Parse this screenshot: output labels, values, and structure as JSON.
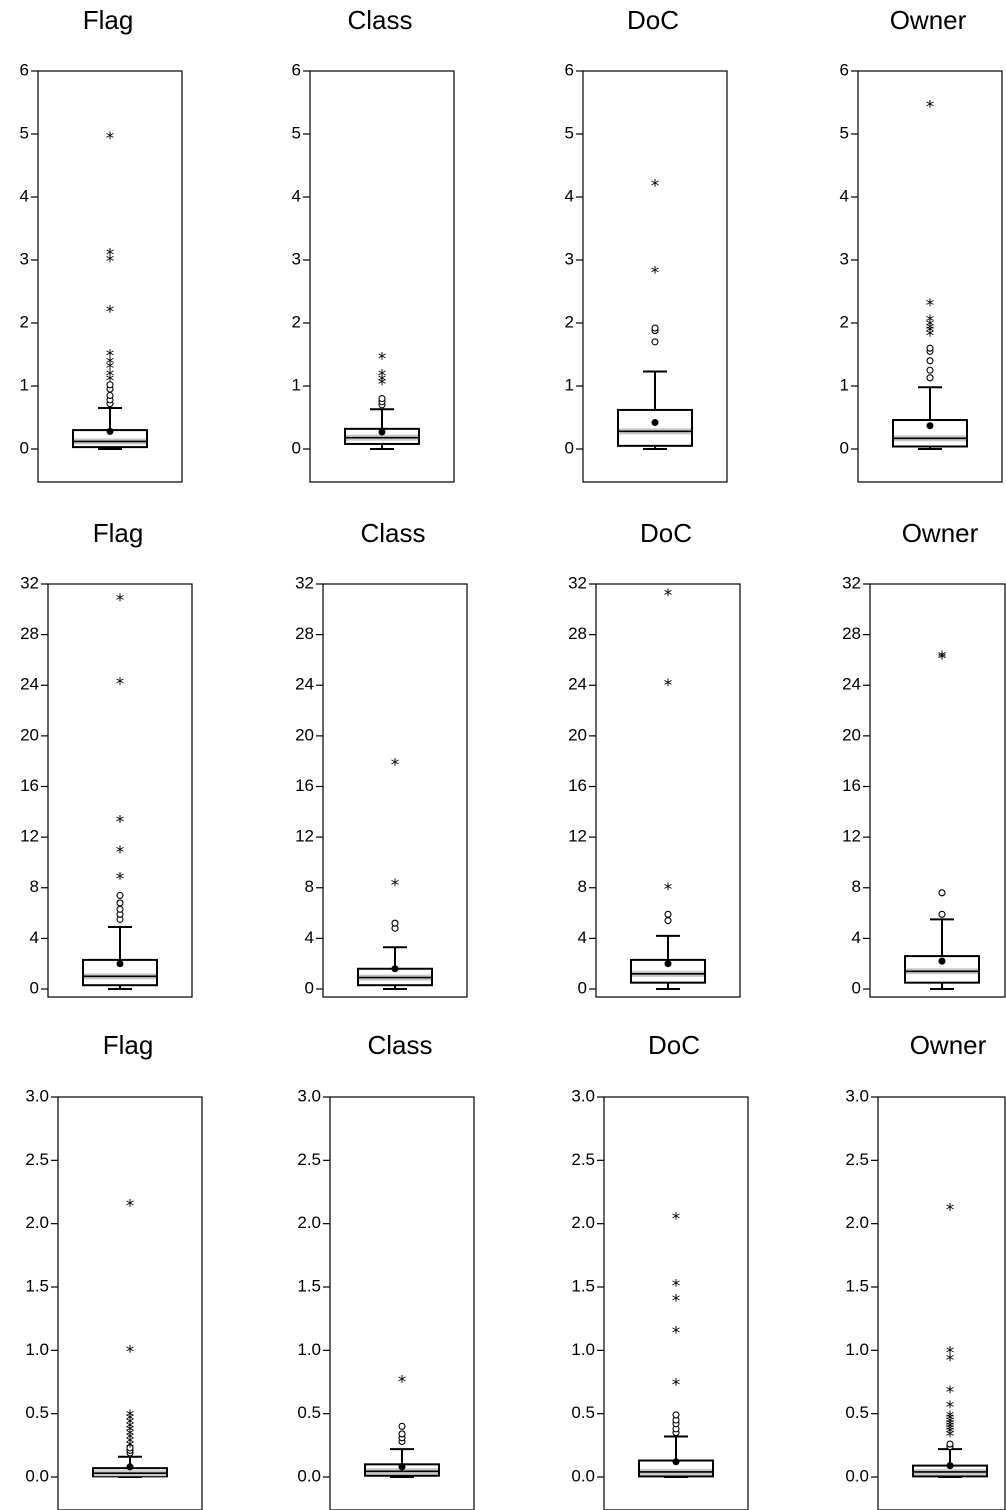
{
  "chart_data": [
    {
      "type": "box",
      "title": "Flag",
      "yticks": [
        "0",
        "1",
        "2",
        "3",
        "4",
        "5",
        "6"
      ],
      "ylim": [
        -0.5,
        6
      ],
      "q1": 0.03,
      "median": 0.12,
      "q3": 0.3,
      "whisker_low": 0,
      "whisker_high": 0.65,
      "mean": 0.28,
      "outliers_mild": [
        0.72,
        0.78,
        0.85,
        0.95,
        1.02
      ],
      "outliers_extreme": [
        1.1,
        1.18,
        1.3,
        1.38,
        1.5,
        2.2,
        3.0,
        3.1,
        4.95
      ]
    },
    {
      "type": "box",
      "title": "Class",
      "yticks": [
        "0",
        "1",
        "2",
        "3",
        "4",
        "5",
        "6"
      ],
      "ylim": [
        -0.5,
        6
      ],
      "q1": 0.08,
      "median": 0.18,
      "q3": 0.32,
      "whisker_low": 0,
      "whisker_high": 0.63,
      "mean": 0.27,
      "outliers_mild": [
        0.7,
        0.75,
        0.8
      ],
      "outliers_extreme": [
        1.05,
        1.1,
        1.18,
        1.45
      ]
    },
    {
      "type": "box",
      "title": "DoC",
      "yticks": [
        "0",
        "1",
        "2",
        "3",
        "4",
        "5",
        "6"
      ],
      "ylim": [
        -0.5,
        6
      ],
      "q1": 0.05,
      "median": 0.28,
      "q3": 0.62,
      "whisker_low": 0,
      "whisker_high": 1.23,
      "mean": 0.42,
      "outliers_mild": [
        1.7,
        1.88,
        1.92
      ],
      "outliers_extreme": [
        2.82,
        4.2
      ]
    },
    {
      "type": "box",
      "title": "Owner",
      "yticks": [
        "0",
        "1",
        "2",
        "3",
        "4",
        "5",
        "6"
      ],
      "ylim": [
        -0.5,
        6
      ],
      "q1": 0.04,
      "median": 0.17,
      "q3": 0.46,
      "whisker_low": 0,
      "whisker_high": 0.98,
      "mean": 0.37,
      "outliers_mild": [
        1.13,
        1.25,
        1.4,
        1.55,
        1.6
      ],
      "outliers_extreme": [
        1.82,
        1.88,
        1.92,
        1.98,
        2.05,
        2.3,
        5.45
      ]
    },
    {
      "type": "box",
      "title": "Flag",
      "yticks": [
        "0",
        "4",
        "8",
        "12",
        "16",
        "20",
        "24",
        "28",
        "32"
      ],
      "ylim": [
        -0.5,
        32
      ],
      "q1": 0.3,
      "median": 1.0,
      "q3": 2.3,
      "whisker_low": 0,
      "whisker_high": 4.9,
      "mean": 2.0,
      "outliers_mild": [
        5.5,
        5.9,
        6.3,
        6.8,
        7.4
      ],
      "outliers_extreme": [
        8.8,
        10.9,
        13.3,
        24.2,
        30.8
      ]
    },
    {
      "type": "box",
      "title": "Class",
      "yticks": [
        "0",
        "4",
        "8",
        "12",
        "16",
        "20",
        "24",
        "28",
        "32"
      ],
      "ylim": [
        -0.5,
        32
      ],
      "q1": 0.3,
      "median": 0.9,
      "q3": 1.6,
      "whisker_low": 0,
      "whisker_high": 3.3,
      "mean": 1.6,
      "outliers_mild": [
        4.8,
        5.2
      ],
      "outliers_extreme": [
        8.3,
        17.8
      ]
    },
    {
      "type": "box",
      "title": "DoC",
      "yticks": [
        "0",
        "4",
        "8",
        "12",
        "16",
        "20",
        "24",
        "28",
        "32"
      ],
      "ylim": [
        -0.5,
        32
      ],
      "q1": 0.5,
      "median": 1.2,
      "q3": 2.3,
      "whisker_low": 0,
      "whisker_high": 4.2,
      "mean": 2.0,
      "outliers_mild": [
        5.4,
        5.9
      ],
      "outliers_extreme": [
        8.0,
        24.1,
        31.2
      ]
    },
    {
      "type": "box",
      "title": "Owner",
      "yticks": [
        "0",
        "4",
        "8",
        "12",
        "16",
        "20",
        "24",
        "28",
        "32"
      ],
      "ylim": [
        -0.5,
        32
      ],
      "q1": 0.5,
      "median": 1.4,
      "q3": 2.6,
      "whisker_low": 0,
      "whisker_high": 5.5,
      "mean": 2.2,
      "outliers_mild": [
        5.9,
        7.6
      ],
      "outliers_extreme": [
        26.2,
        26.3
      ]
    },
    {
      "type": "box",
      "title": "Flag",
      "yticks": [
        "0.0",
        "0.5",
        "1.0",
        "1.5",
        "2.0",
        "2.5",
        "3.0"
      ],
      "ylim": [
        -0.2,
        3.0
      ],
      "q1": 0.005,
      "median": 0.03,
      "q3": 0.07,
      "whisker_low": 0,
      "whisker_high": 0.16,
      "mean": 0.08,
      "outliers_mild": [
        0.19,
        0.21,
        0.23
      ],
      "outliers_extreme": [
        0.25,
        0.28,
        0.31,
        0.34,
        0.37,
        0.4,
        0.43,
        0.46,
        0.49,
        1.0,
        2.15
      ]
    },
    {
      "type": "box",
      "title": "Class",
      "yticks": [
        "0.0",
        "0.5",
        "1.0",
        "1.5",
        "2.0",
        "2.5",
        "3.0"
      ],
      "ylim": [
        -0.2,
        3.0
      ],
      "q1": 0.01,
      "median": 0.045,
      "q3": 0.1,
      "whisker_low": 0,
      "whisker_high": 0.22,
      "mean": 0.08,
      "outliers_mild": [
        0.28,
        0.31,
        0.34,
        0.4
      ],
      "outliers_extreme": [
        0.76
      ]
    },
    {
      "type": "box",
      "title": "DoC",
      "yticks": [
        "0.0",
        "0.5",
        "1.0",
        "1.5",
        "2.0",
        "2.5",
        "3.0"
      ],
      "ylim": [
        -0.2,
        3.0
      ],
      "q1": 0.005,
      "median": 0.04,
      "q3": 0.13,
      "whisker_low": 0,
      "whisker_high": 0.32,
      "mean": 0.12,
      "outliers_mild": [
        0.35,
        0.38,
        0.42,
        0.45,
        0.49
      ],
      "outliers_extreme": [
        0.74,
        1.15,
        1.4,
        1.52,
        2.05
      ]
    },
    {
      "type": "box",
      "title": "Owner",
      "yticks": [
        "0.0",
        "0.5",
        "1.0",
        "1.5",
        "2.0",
        "2.5",
        "3.0"
      ],
      "ylim": [
        -0.2,
        3.0
      ],
      "q1": 0.005,
      "median": 0.04,
      "q3": 0.09,
      "whisker_low": 0,
      "whisker_high": 0.22,
      "mean": 0.09,
      "outliers_mild": [
        0.24,
        0.26
      ],
      "outliers_extreme": [
        0.33,
        0.36,
        0.38,
        0.4,
        0.42,
        0.44,
        0.46,
        0.48,
        0.56,
        0.68,
        0.93,
        0.99,
        2.12
      ]
    }
  ]
}
